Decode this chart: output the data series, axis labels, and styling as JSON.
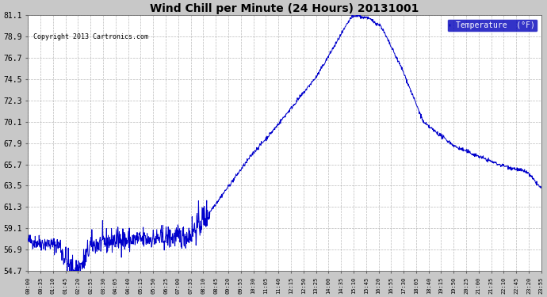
{
  "title": "Wind Chill per Minute (24 Hours) 20131001",
  "copyright_text": "Copyright 2013 Cartronics.com",
  "legend_label": "Temperature  (°F)",
  "legend_bg": "#0000bb",
  "legend_text_color": "#ffffff",
  "line_color": "#0000cc",
  "background_color": "#c8c8c8",
  "plot_bg": "#ffffff",
  "grid_color": "#aaaaaa",
  "title_color": "#000000",
  "ylim": [
    54.7,
    81.1
  ],
  "yticks": [
    54.7,
    56.9,
    59.1,
    61.3,
    63.5,
    65.7,
    67.9,
    70.1,
    72.3,
    74.5,
    76.7,
    78.9,
    81.1
  ],
  "xtick_labels": [
    "00:00",
    "00:35",
    "01:10",
    "01:45",
    "02:20",
    "02:55",
    "03:30",
    "04:05",
    "04:40",
    "05:15",
    "05:50",
    "06:25",
    "07:00",
    "07:35",
    "08:10",
    "08:45",
    "09:20",
    "09:55",
    "10:30",
    "11:05",
    "11:40",
    "12:15",
    "12:50",
    "13:25",
    "14:00",
    "14:35",
    "15:10",
    "15:45",
    "16:20",
    "16:55",
    "17:30",
    "18:05",
    "18:40",
    "19:15",
    "19:50",
    "20:25",
    "21:00",
    "21:35",
    "22:10",
    "22:45",
    "23:20",
    "23:55"
  ]
}
